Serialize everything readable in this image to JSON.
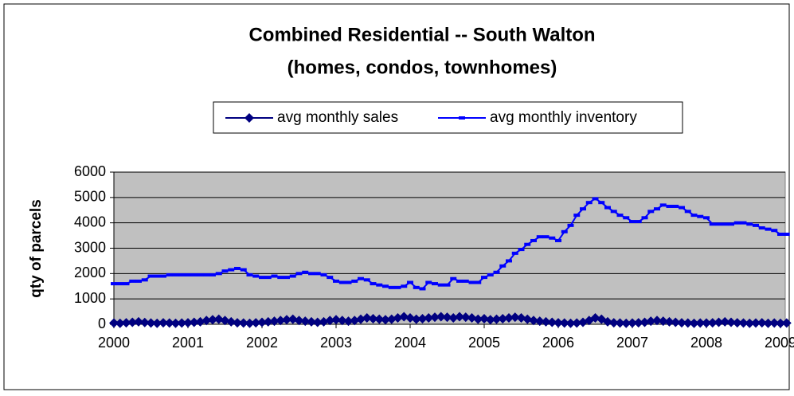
{
  "chart_data": {
    "type": "line",
    "title": "Combined Residential -- South Walton",
    "subtitle": "(homes, condos, townhomes)",
    "y_label": "qty of parcels",
    "categories": [
      "2000",
      null,
      null,
      null,
      null,
      null,
      null,
      null,
      null,
      null,
      null,
      null,
      "2001",
      null,
      null,
      null,
      null,
      null,
      null,
      null,
      null,
      null,
      null,
      null,
      "2002",
      null,
      null,
      null,
      null,
      null,
      null,
      null,
      null,
      null,
      null,
      null,
      "2003",
      null,
      null,
      null,
      null,
      null,
      null,
      null,
      null,
      null,
      null,
      null,
      "2004",
      null,
      null,
      null,
      null,
      null,
      null,
      null,
      null,
      null,
      null,
      null,
      "2005",
      null,
      null,
      null,
      null,
      null,
      null,
      null,
      null,
      null,
      null,
      null,
      "2006",
      null,
      null,
      null,
      null,
      null,
      null,
      null,
      null,
      null,
      null,
      null,
      "2007",
      null,
      null,
      null,
      null,
      null,
      null,
      null,
      null,
      null,
      null,
      null,
      "2008",
      null,
      null,
      null,
      null,
      null,
      null,
      null,
      null,
      null,
      null,
      null,
      "2009",
      null
    ],
    "series": [
      {
        "name": "avg monthly sales",
        "color": "#000080",
        "marker": "diamond",
        "values": [
          50,
          40,
          60,
          80,
          100,
          70,
          50,
          40,
          60,
          50,
          40,
          50,
          60,
          80,
          100,
          150,
          180,
          200,
          150,
          100,
          60,
          50,
          40,
          60,
          80,
          100,
          120,
          150,
          180,
          200,
          150,
          120,
          100,
          80,
          100,
          150,
          180,
          150,
          120,
          150,
          200,
          250,
          220,
          200,
          180,
          200,
          250,
          300,
          250,
          200,
          220,
          250,
          280,
          300,
          280,
          250,
          300,
          280,
          250,
          200,
          220,
          180,
          200,
          220,
          250,
          280,
          250,
          200,
          150,
          120,
          100,
          80,
          60,
          50,
          40,
          50,
          80,
          150,
          250,
          200,
          100,
          60,
          50,
          40,
          50,
          60,
          80,
          120,
          150,
          120,
          100,
          80,
          60,
          50,
          40,
          50,
          50,
          60,
          80,
          100,
          80,
          60,
          50,
          40,
          50,
          60,
          40,
          50,
          40,
          50
        ]
      },
      {
        "name": "avg monthly inventory",
        "color": "#0000ff",
        "marker": "dash",
        "values": [
          1600,
          1600,
          1600,
          1700,
          1700,
          1750,
          1900,
          1900,
          1900,
          1950,
          1950,
          1950,
          1950,
          1950,
          1950,
          1950,
          1950,
          2000,
          2100,
          2150,
          2200,
          2150,
          1950,
          1900,
          1850,
          1850,
          1900,
          1850,
          1850,
          1900,
          2000,
          2050,
          2000,
          2000,
          1950,
          1850,
          1700,
          1650,
          1650,
          1700,
          1800,
          1750,
          1600,
          1550,
          1500,
          1450,
          1450,
          1500,
          1650,
          1450,
          1400,
          1650,
          1600,
          1550,
          1550,
          1800,
          1700,
          1700,
          1650,
          1650,
          1850,
          1950,
          2050,
          2300,
          2500,
          2800,
          2950,
          3150,
          3300,
          3450,
          3450,
          3400,
          3300,
          3650,
          3900,
          4300,
          4550,
          4800,
          4950,
          4800,
          4600,
          4450,
          4300,
          4200,
          4050,
          4050,
          4200,
          4450,
          4550,
          4700,
          4650,
          4650,
          4600,
          4450,
          4300,
          4250,
          4200,
          3950,
          3950,
          3950,
          3950,
          4000,
          4000,
          3950,
          3900,
          3800,
          3750,
          3700,
          3550,
          3550
        ]
      }
    ],
    "ylim": [
      0,
      6000
    ],
    "yticks": [
      0,
      1000,
      2000,
      3000,
      4000,
      5000,
      6000
    ],
    "grid": true,
    "plot_background": "#c0c0c0",
    "legend": "top"
  }
}
